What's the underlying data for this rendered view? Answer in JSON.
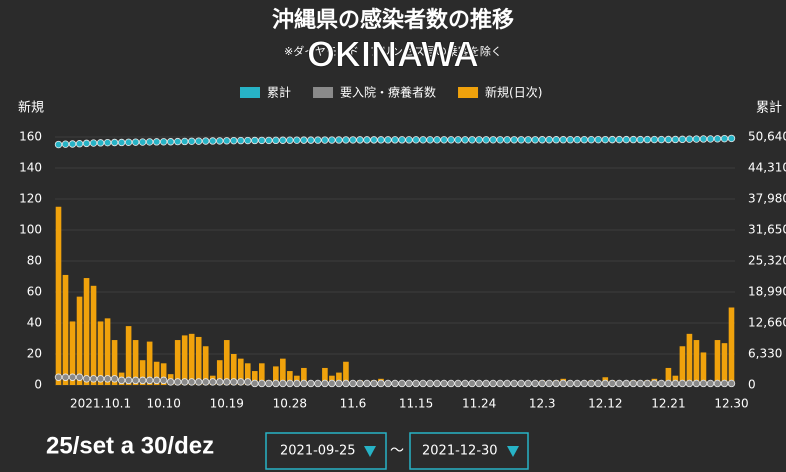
{
  "title": "沖縄県の感染者数の推移",
  "subtitle": "※ダイヤモンド・プリンセス号の乗客を除く",
  "overlay": "OKINAWA",
  "period_label": "25/set a 30/dez",
  "date_from": "2021-09-25",
  "date_to": "2021-12-30",
  "separator": "～",
  "chart_data": {
    "type": "bar",
    "y_label": "新規",
    "y2_label": "累計",
    "categories": [
      null,
      null,
      null,
      null,
      null,
      null,
      "2021.10.1",
      null,
      null,
      null,
      null,
      null,
      null,
      null,
      null,
      "10.10",
      null,
      null,
      null,
      null,
      null,
      null,
      null,
      null,
      "10.19",
      null,
      null,
      null,
      null,
      null,
      null,
      null,
      null,
      "10.28",
      null,
      null,
      null,
      null,
      null,
      null,
      null,
      null,
      "11.6",
      null,
      null,
      null,
      null,
      null,
      null,
      null,
      null,
      "11.15",
      null,
      null,
      null,
      null,
      null,
      null,
      null,
      null,
      "11.24",
      null,
      null,
      null,
      null,
      null,
      null,
      null,
      null,
      "12.3",
      null,
      null,
      null,
      null,
      null,
      null,
      null,
      null,
      "12.12",
      null,
      null,
      null,
      null,
      null,
      null,
      null,
      null,
      "12.21",
      null,
      null,
      null,
      null,
      null,
      null,
      null,
      null,
      "12.30"
    ],
    "series": [
      {
        "name": "累計",
        "color": "#27b3c6",
        "axis": "y2",
        "values": [
          49100,
          49171,
          49212,
          49269,
          49338,
          49402,
          49443,
          49486,
          49515,
          49523,
          49561,
          49590,
          49606,
          49634,
          49649,
          49663,
          49670,
          49699,
          49731,
          49764,
          49795,
          49820,
          49826,
          49842,
          49871,
          49891,
          49908,
          49922,
          49931,
          49945,
          49948,
          49960,
          49977,
          49986,
          49992,
          50003,
          50004,
          50006,
          50017,
          50023,
          50031,
          50046,
          50048,
          50051,
          50052,
          50055,
          50059,
          50060,
          50062,
          50062,
          50063,
          50064,
          50064,
          50065,
          50065,
          50066,
          50066,
          50067,
          50067,
          50068,
          50068,
          50069,
          50069,
          50070,
          50070,
          50071,
          50073,
          50073,
          50074,
          50077,
          50079,
          50082,
          50086,
          50088,
          50089,
          50089,
          50092,
          50094,
          50099,
          50102,
          50103,
          50105,
          50108,
          50109,
          50112,
          50116,
          50117,
          50128,
          50134,
          50159,
          50192,
          50221,
          50242,
          50243,
          50272,
          50299,
          50349
        ]
      },
      {
        "name": "要入院・療養者数",
        "color": "#8a8a8a",
        "values": [
          5,
          5,
          5,
          5,
          4,
          4,
          4,
          4,
          4,
          3,
          3,
          3,
          3,
          3,
          3,
          3,
          2,
          2,
          2,
          2,
          2,
          2,
          2,
          2,
          2,
          2,
          2,
          2,
          1,
          1,
          1,
          1,
          1,
          1,
          1,
          1,
          1,
          1,
          1,
          1,
          1,
          1,
          1,
          1,
          1,
          1,
          1,
          1,
          1,
          1,
          1,
          1,
          1,
          1,
          1,
          1,
          1,
          1,
          1,
          1,
          1,
          1,
          1,
          1,
          1,
          1,
          1,
          1,
          1,
          1,
          1,
          1,
          1,
          1,
          1,
          1,
          1,
          1,
          1,
          1,
          1,
          1,
          1,
          1,
          1,
          1,
          1,
          1,
          1,
          1,
          1,
          1,
          1,
          1,
          1,
          1,
          1
        ]
      },
      {
        "name": "新規(日次)",
        "color": "#f0a20c",
        "values": [
          115,
          71,
          41,
          57,
          69,
          64,
          41,
          43,
          29,
          8,
          38,
          29,
          16,
          28,
          15,
          14,
          7,
          29,
          32,
          33,
          31,
          25,
          6,
          16,
          29,
          20,
          17,
          14,
          9,
          14,
          3,
          12,
          17,
          9,
          6,
          11,
          1,
          2,
          11,
          6,
          8,
          15,
          2,
          3,
          1,
          3,
          4,
          1,
          2,
          0,
          1,
          1,
          0,
          1,
          0,
          1,
          0,
          1,
          0,
          1,
          0,
          1,
          0,
          1,
          0,
          1,
          2,
          0,
          1,
          3,
          2,
          3,
          4,
          2,
          1,
          0,
          3,
          2,
          5,
          3,
          1,
          2,
          3,
          1,
          3,
          4,
          1,
          11,
          6,
          25,
          33,
          29,
          21,
          1,
          29,
          27,
          50
        ]
      }
    ],
    "ylim": [
      0,
      160
    ],
    "yticks": [
      0,
      20,
      40,
      60,
      80,
      100,
      120,
      140,
      160
    ],
    "y2lim": [
      0,
      50640
    ],
    "y2ticks": [
      0,
      {
        "value": 6330,
        "label": "6,330"
      },
      {
        "value": 12660,
        "label": "12,660"
      },
      {
        "value": 18990,
        "label": "18,990"
      },
      {
        "value": 25320,
        "label": "25,320"
      },
      {
        "value": 31650,
        "label": "31,650"
      },
      {
        "value": 37980,
        "label": "37,980"
      },
      {
        "value": 44310,
        "label": "44,310"
      },
      {
        "value": 50640,
        "label": "50,640"
      }
    ],
    "grid": true
  }
}
